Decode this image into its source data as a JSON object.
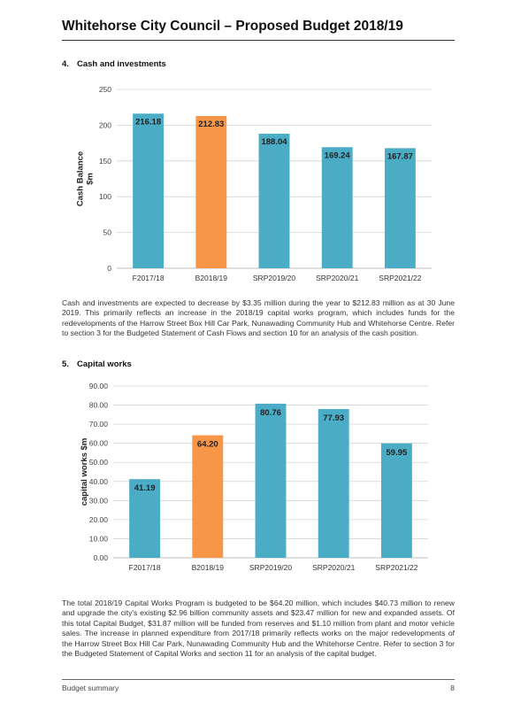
{
  "page_title": "Whitehorse City Council – Proposed Budget 2018/19",
  "sections": [
    {
      "number": "4.",
      "heading": "Cash and investments",
      "paragraph": "Cash and investments are expected to decrease by $3.35 million during the year to $212.83 million as at 30 June 2019. This primarily reflects an increase in the 2018/19 capital works program, which includes funds for the redevelopments of the Harrow Street Box Hill Car Park, Nunawading Community Hub and Whitehorse Centre. Refer to section 3 for the Budgeted Statement of Cash Flows and section 10 for an analysis of the cash position."
    },
    {
      "number": "5.",
      "heading": "Capital works",
      "paragraph": "The total 2018/19 Capital Works Program is budgeted to be $64.20 million, which includes $40.73 million to renew and upgrade the city's existing $2.96 billion community assets and $23.47 million for new and expanded assets. Of this total Capital Budget, $31.87 million will be funded from reserves and $1.10 million from plant and motor vehicle sales. The increase in planned expenditure from 2017/18 primarily reflects works on the major redevelopments of the Harrow Street Box Hill Car Park, Nunawading Community Hub and the Whitehorse Centre. Refer to section 3 for the Budgeted Statement of Capital Works and section 11 for an analysis of the capital budget."
    }
  ],
  "chart_data": [
    {
      "type": "bar",
      "title": "",
      "xlabel": "",
      "ylabel": "Cash Balance $m",
      "ylabel_lines": [
        "Cash Balance",
        "$m"
      ],
      "categories": [
        "F2017/18",
        "B2018/19",
        "SRP2019/20",
        "SRP2020/21",
        "SRP2021/22"
      ],
      "values": [
        216.18,
        212.83,
        188.04,
        169.24,
        167.87
      ],
      "value_labels": [
        "216.18",
        "212.83",
        "188.04",
        "169.24",
        "167.87"
      ],
      "highlight_index": 1,
      "ylim": [
        0,
        250
      ],
      "yticks": [
        0,
        50,
        100,
        150,
        200,
        250
      ],
      "ytick_labels": [
        "0",
        "50",
        "100",
        "150",
        "200",
        "250"
      ],
      "grid": true,
      "colors": {
        "bar": "#4bacc6",
        "highlight": "#f79646"
      }
    },
    {
      "type": "bar",
      "title": "",
      "xlabel": "",
      "ylabel": "capital works $m",
      "ylabel_lines": [
        "capital works $m"
      ],
      "categories": [
        "F2017/18",
        "B2018/19",
        "SRP2019/20",
        "SRP2020/21",
        "SRP2021/22"
      ],
      "values": [
        41.19,
        64.2,
        80.76,
        77.93,
        59.95
      ],
      "value_labels": [
        "41.19",
        "64.20",
        "80.76",
        "77.93",
        "59.95"
      ],
      "highlight_index": 1,
      "ylim": [
        0,
        90
      ],
      "yticks": [
        0,
        10,
        20,
        30,
        40,
        50,
        60,
        70,
        80,
        90
      ],
      "ytick_labels": [
        "0.00",
        "10.00",
        "20.00",
        "30.00",
        "40.00",
        "50.00",
        "60.00",
        "70.00",
        "80.00",
        "90.00"
      ],
      "grid": true,
      "colors": {
        "bar": "#4bacc6",
        "highlight": "#f79646"
      }
    }
  ],
  "footer": {
    "left": "Budget summary",
    "page_number": "8"
  }
}
